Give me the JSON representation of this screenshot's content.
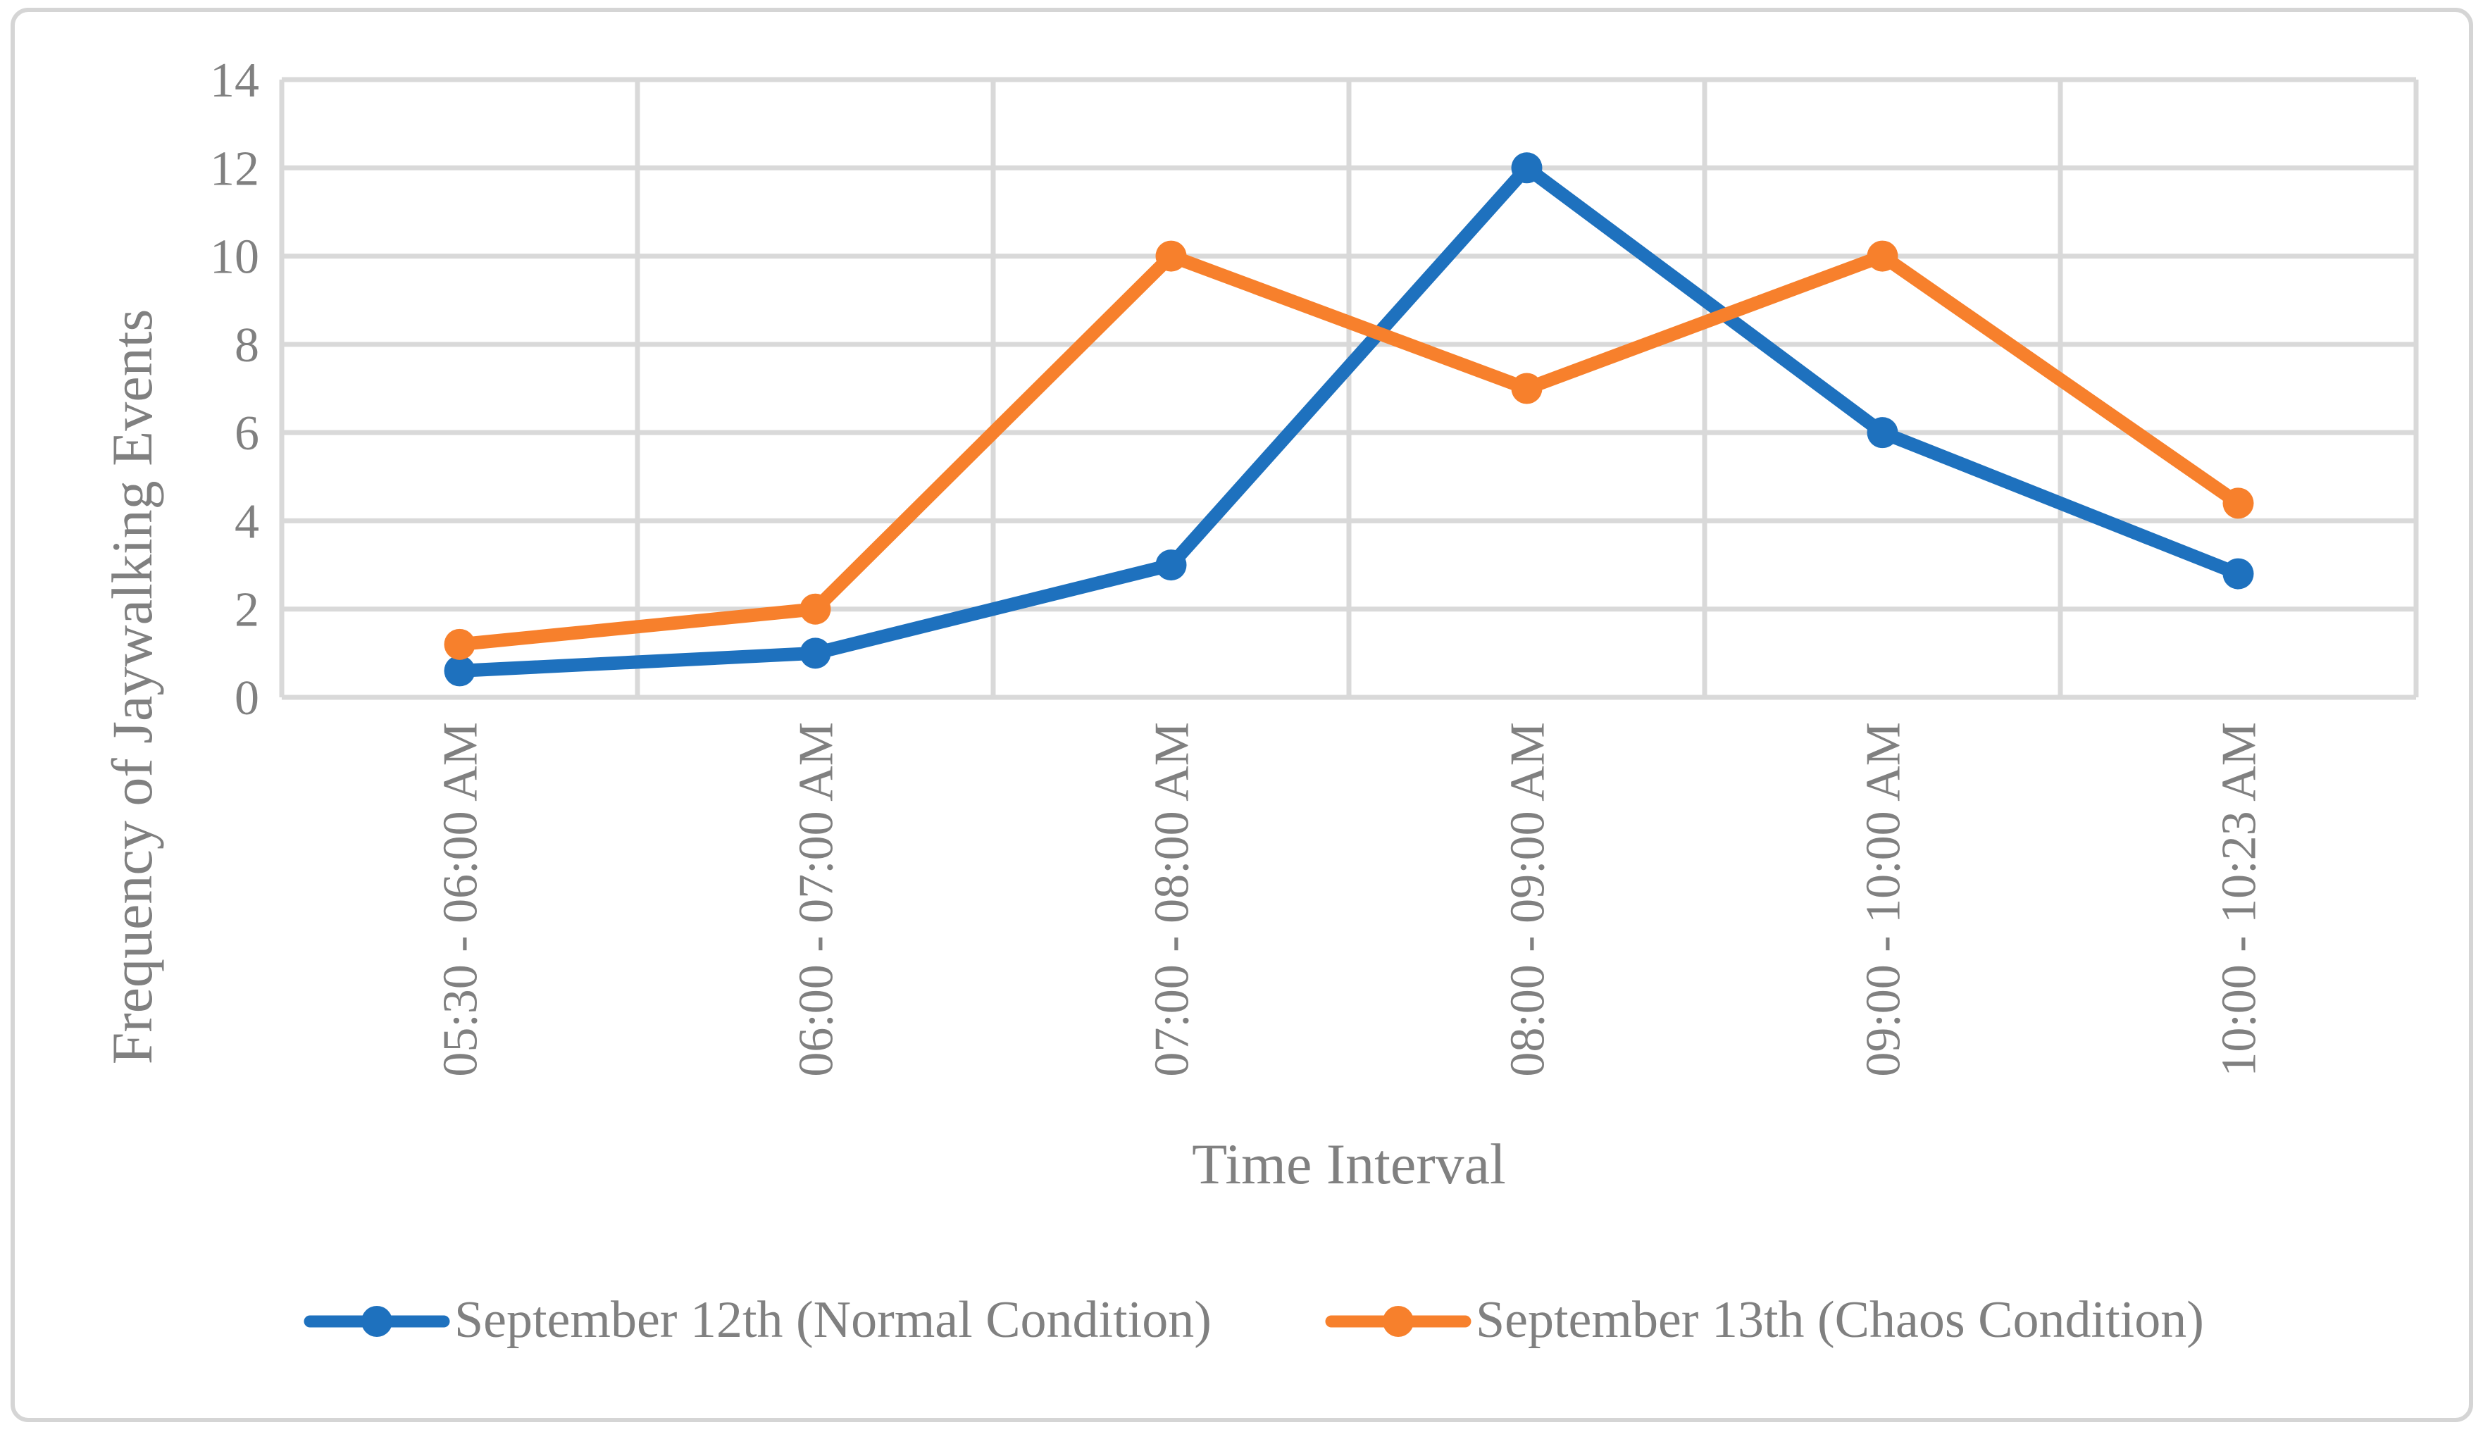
{
  "figure": {
    "background": "#FFFFFF",
    "border_color": "#D5D5D5",
    "text_color": "#808080",
    "grid_color": "#D9D9D9"
  },
  "chart_data": {
    "type": "line",
    "title": "",
    "xlabel": "Time Interval",
    "ylabel": "Frequency of Jaywalking Events",
    "categories": [
      "05:30 - 06:00 AM",
      "06:00 - 07:00 AM",
      "07:00 - 08:00 AM",
      "08:00 - 09:00 AM",
      "09:00 - 10:00 AM",
      "10:00 - 10:23 AM"
    ],
    "series": [
      {
        "name": "September 12th (Normal Condition)",
        "color": "#1E71BE",
        "marker": "circle",
        "values": [
          0.6,
          1,
          3,
          12,
          6,
          2.8
        ]
      },
      {
        "name": "September 13th (Chaos Condition)",
        "color": "#F7802C",
        "marker": "circle",
        "values": [
          1.2,
          2,
          10,
          7,
          10,
          4.4
        ]
      }
    ],
    "ylim": [
      0,
      14
    ],
    "yticks": [
      0,
      2,
      4,
      6,
      8,
      10,
      12,
      14
    ],
    "grid": true,
    "vertical_grid": true,
    "legend_position": "bottom"
  }
}
